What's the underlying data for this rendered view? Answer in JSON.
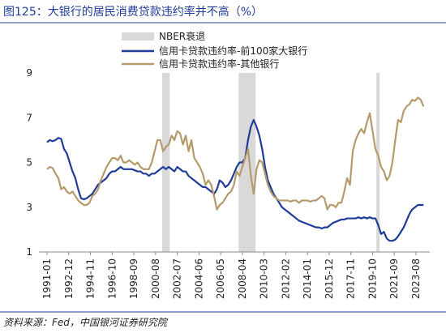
{
  "chart_data": {
    "type": "line",
    "title": "图125：大银行的居民消费贷款违约率并不高（%）",
    "source": "资料来源：Fed，中国银河证券研究院",
    "recession_label": "NBER衰退",
    "recession_color": "#d9d9d9",
    "recessions": [
      [
        "2001-03",
        "2001-11"
      ],
      [
        "2007-12",
        "2009-06"
      ],
      [
        "2020-02",
        "2020-04"
      ]
    ],
    "x": [
      "1991-01",
      "1991-04",
      "1991-07",
      "1991-10",
      "1992-01",
      "1992-04",
      "1992-07",
      "1992-10",
      "1993-01",
      "1993-04",
      "1993-07",
      "1993-10",
      "1994-01",
      "1994-04",
      "1994-07",
      "1994-10",
      "1995-01",
      "1995-04",
      "1995-07",
      "1995-10",
      "1996-01",
      "1996-04",
      "1996-07",
      "1996-10",
      "1997-01",
      "1997-04",
      "1997-07",
      "1997-10",
      "1998-01",
      "1998-04",
      "1998-07",
      "1998-10",
      "1999-01",
      "1999-04",
      "1999-07",
      "1999-10",
      "2000-01",
      "2000-04",
      "2000-07",
      "2000-10",
      "2001-01",
      "2001-04",
      "2001-07",
      "2001-10",
      "2002-01",
      "2002-04",
      "2002-07",
      "2002-10",
      "2003-01",
      "2003-04",
      "2003-07",
      "2003-10",
      "2004-01",
      "2004-04",
      "2004-07",
      "2004-10",
      "2005-01",
      "2005-04",
      "2005-07",
      "2005-10",
      "2006-01",
      "2006-04",
      "2006-07",
      "2006-10",
      "2007-01",
      "2007-04",
      "2007-07",
      "2007-10",
      "2008-01",
      "2008-04",
      "2008-07",
      "2008-10",
      "2009-01",
      "2009-04",
      "2009-07",
      "2009-10",
      "2010-01",
      "2010-04",
      "2010-07",
      "2010-10",
      "2011-01",
      "2011-04",
      "2011-07",
      "2011-10",
      "2012-01",
      "2012-04",
      "2012-07",
      "2012-10",
      "2013-01",
      "2013-04",
      "2013-07",
      "2013-10",
      "2014-01",
      "2014-04",
      "2014-07",
      "2014-10",
      "2015-01",
      "2015-04",
      "2015-07",
      "2015-10",
      "2016-01",
      "2016-04",
      "2016-07",
      "2016-10",
      "2017-01",
      "2017-04",
      "2017-07",
      "2017-10",
      "2018-01",
      "2018-04",
      "2018-07",
      "2018-10",
      "2019-01",
      "2019-04",
      "2019-07",
      "2019-10",
      "2020-01",
      "2020-04",
      "2020-07",
      "2020-10",
      "2021-01",
      "2021-04",
      "2021-07",
      "2021-10",
      "2022-01",
      "2022-04",
      "2022-07",
      "2022-10",
      "2023-01",
      "2023-04",
      "2023-07",
      "2023-10",
      "2024-01",
      "2024-04"
    ],
    "series": [
      {
        "name": "信用卡贷款违约率-前100家大银行",
        "color": "#1f3c99",
        "values": [
          5.9,
          6.0,
          5.95,
          6.0,
          6.1,
          6.05,
          5.6,
          5.4,
          5.0,
          4.6,
          4.3,
          3.8,
          3.4,
          3.35,
          3.4,
          3.5,
          3.6,
          3.8,
          4.0,
          4.1,
          4.2,
          4.3,
          4.5,
          4.6,
          4.6,
          4.7,
          4.8,
          4.7,
          4.7,
          4.7,
          4.7,
          4.65,
          4.6,
          4.6,
          4.5,
          4.5,
          4.4,
          4.5,
          4.5,
          4.6,
          4.7,
          4.8,
          4.7,
          4.8,
          4.7,
          4.6,
          4.8,
          4.7,
          4.6,
          4.6,
          4.4,
          4.3,
          4.2,
          4.1,
          4.0,
          3.9,
          3.9,
          3.8,
          3.7,
          3.6,
          3.8,
          4.2,
          4.1,
          3.9,
          4.0,
          4.2,
          4.5,
          4.8,
          5.0,
          5.0,
          5.2,
          6.0,
          6.6,
          6.9,
          6.6,
          6.2,
          5.6,
          4.8,
          4.2,
          3.9,
          3.6,
          3.4,
          3.2,
          3.0,
          2.9,
          2.8,
          2.7,
          2.6,
          2.5,
          2.4,
          2.35,
          2.3,
          2.25,
          2.2,
          2.15,
          2.1,
          2.1,
          2.05,
          2.1,
          2.1,
          2.2,
          2.3,
          2.35,
          2.4,
          2.45,
          2.45,
          2.5,
          2.5,
          2.5,
          2.5,
          2.55,
          2.5,
          2.55,
          2.5,
          2.55,
          2.5,
          2.5,
          2.2,
          1.8,
          1.9,
          1.6,
          1.5,
          1.5,
          1.55,
          1.7,
          1.9,
          2.1,
          2.4,
          2.7,
          2.9,
          3.0,
          3.1,
          3.1,
          3.1
        ]
      },
      {
        "name": "信用卡贷款违约率-其他银行",
        "color": "#b59a6b",
        "values": [
          4.7,
          4.8,
          4.75,
          4.5,
          4.3,
          3.8,
          3.9,
          3.7,
          3.6,
          3.7,
          3.5,
          3.3,
          3.2,
          3.1,
          3.1,
          3.2,
          3.5,
          3.6,
          3.8,
          4.2,
          4.5,
          4.8,
          5.0,
          5.2,
          5.2,
          5.1,
          5.3,
          5.0,
          5.0,
          5.1,
          5.0,
          4.9,
          5.0,
          4.8,
          4.7,
          4.7,
          4.7,
          5.0,
          5.5,
          6.0,
          6.0,
          5.5,
          5.7,
          5.8,
          6.2,
          6.0,
          6.4,
          6.3,
          5.8,
          6.2,
          5.5,
          6.0,
          5.2,
          5.0,
          4.8,
          4.5,
          4.0,
          4.2,
          4.0,
          3.5,
          2.9,
          3.1,
          3.2,
          3.4,
          3.6,
          3.7,
          4.0,
          4.6,
          4.4,
          4.8,
          5.2,
          5.6,
          4.4,
          3.6,
          4.7,
          5.1,
          5.0,
          4.5,
          4.0,
          3.7,
          3.5,
          3.4,
          3.3,
          3.3,
          3.3,
          3.3,
          3.25,
          3.3,
          3.3,
          3.2,
          3.3,
          3.3,
          3.3,
          3.25,
          3.3,
          3.3,
          3.4,
          3.5,
          3.4,
          2.9,
          3.1,
          3.1,
          3.0,
          3.2,
          3.2,
          3.7,
          4.3,
          4.0,
          5.5,
          6.0,
          6.3,
          6.5,
          6.3,
          6.8,
          7.2,
          6.4,
          5.6,
          5.3,
          4.8,
          4.6,
          4.2,
          4.4,
          5.0,
          6.0,
          6.9,
          6.8,
          7.3,
          7.5,
          7.6,
          7.8,
          7.75,
          7.9,
          7.8,
          7.5
        ]
      }
    ],
    "xticks": [
      "1991-01",
      "1992-12",
      "1994-11",
      "1996-10",
      "1998-09",
      "2000-08",
      "2002-07",
      "2004-06",
      "2006-05",
      "2008-04",
      "2010-03",
      "2012-02",
      "2014-01",
      "2015-12",
      "2017-11",
      "2019-10",
      "2021-09",
      "2023-08"
    ],
    "ylim": [
      1,
      9
    ],
    "yticks": [
      1,
      3,
      5,
      7,
      9
    ],
    "grid": false
  }
}
